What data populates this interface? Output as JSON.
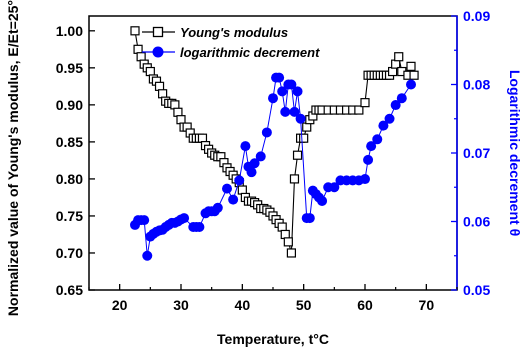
{
  "chart_data": {
    "type": "scatter",
    "xlabel": "Temperature, t°C",
    "ylabel_left": "Normalized value of Young's modulus, E/Et=25°C",
    "ylabel_right": "Logarithmic decrement θ",
    "xlim": [
      15,
      75
    ],
    "xticks": [
      20,
      30,
      40,
      50,
      60,
      70
    ],
    "ylim_left": [
      0.65,
      1.02
    ],
    "yticks_left": [
      0.65,
      0.7,
      0.75,
      0.8,
      0.85,
      0.9,
      0.95,
      1.0
    ],
    "ylim_right": [
      0.05,
      0.09
    ],
    "yticks_right": [
      0.05,
      0.06,
      0.07,
      0.08,
      0.09
    ],
    "legend_position": "top-left",
    "colors": {
      "modulus": "#000000",
      "decrement": "#0000ff",
      "right_axis": "#0000ff"
    },
    "series": [
      {
        "name": "Young's modulus",
        "axis": "left",
        "marker": "open-square",
        "x": [
          22.5,
          23.0,
          23.5,
          24.0,
          24.5,
          25.0,
          25.5,
          26.0,
          26.5,
          27.0,
          27.5,
          28.0,
          28.5,
          29.0,
          29.5,
          30.0,
          30.5,
          31.0,
          31.5,
          32.0,
          32.5,
          33.0,
          33.5,
          34.0,
          34.5,
          35.0,
          35.5,
          36.0,
          36.5,
          37.0,
          37.5,
          38.0,
          38.5,
          39.0,
          39.5,
          40.0,
          40.5,
          41.0,
          41.5,
          42.0,
          42.5,
          43.0,
          43.5,
          44.0,
          44.5,
          45.0,
          45.5,
          46.0,
          46.5,
          47.0,
          47.5,
          48.0,
          48.5,
          49.0,
          49.5,
          50.0,
          50.5,
          51.0,
          51.5,
          52.0,
          52.5,
          53.0,
          54.0,
          55.0,
          56.0,
          57.0,
          58.0,
          59.0,
          60.0,
          60.5,
          61.0,
          61.5,
          62.0,
          62.5,
          63.0,
          63.5,
          64.0,
          64.5,
          65.0,
          65.5,
          66.0,
          67.0,
          67.5,
          68.0
        ],
        "y": [
          1.0,
          0.975,
          0.965,
          0.955,
          0.95,
          0.945,
          0.935,
          0.932,
          0.925,
          0.915,
          0.905,
          0.902,
          0.902,
          0.9,
          0.89,
          0.88,
          0.87,
          0.87,
          0.862,
          0.855,
          0.855,
          0.855,
          0.855,
          0.845,
          0.84,
          0.835,
          0.832,
          0.83,
          0.83,
          0.822,
          0.815,
          0.81,
          0.805,
          0.8,
          0.795,
          0.785,
          0.775,
          0.77,
          0.77,
          0.768,
          0.765,
          0.76,
          0.76,
          0.758,
          0.755,
          0.75,
          0.745,
          0.74,
          0.735,
          0.725,
          0.715,
          0.7,
          0.8,
          0.832,
          0.855,
          0.855,
          0.87,
          0.88,
          0.885,
          0.893,
          0.893,
          0.893,
          0.893,
          0.893,
          0.893,
          0.893,
          0.893,
          0.893,
          0.903,
          0.94,
          0.94,
          0.94,
          0.94,
          0.94,
          0.94,
          0.94,
          0.94,
          0.945,
          0.955,
          0.965,
          0.945,
          0.94,
          0.952,
          0.94
        ]
      },
      {
        "name": "logarithmic decrement",
        "axis": "right",
        "marker": "filled-circle",
        "x": [
          22.5,
          23.0,
          23.5,
          24.0,
          24.5,
          25.0,
          25.5,
          26.0,
          26.5,
          27.0,
          27.5,
          28.0,
          28.5,
          29.0,
          29.5,
          30.0,
          30.5,
          32.0,
          32.5,
          33.0,
          34.0,
          34.5,
          35.0,
          35.5,
          36.0,
          37.5,
          38.5,
          39.5,
          40.5,
          41.0,
          41.5,
          42.0,
          43.0,
          44.0,
          45.0,
          45.5,
          46.0,
          46.5,
          47.0,
          47.5,
          48.0,
          48.5,
          49.0,
          49.5,
          50.5,
          51.0,
          51.5,
          52.0,
          52.5,
          53.0,
          54.0,
          55.0,
          56.0,
          57.0,
          58.0,
          59.0,
          60.0,
          60.5,
          61.0,
          62.0,
          63.0,
          64.0,
          65.0,
          66.0,
          67.5
        ],
        "y": [
          0.0595,
          0.0602,
          0.0602,
          0.0602,
          0.055,
          0.0578,
          0.0582,
          0.0585,
          0.0587,
          0.0588,
          0.0592,
          0.0595,
          0.0598,
          0.0598,
          0.06,
          0.0603,
          0.0605,
          0.0592,
          0.0592,
          0.0592,
          0.0612,
          0.0615,
          0.0615,
          0.0615,
          0.062,
          0.0648,
          0.0632,
          0.066,
          0.071,
          0.068,
          0.0672,
          0.0685,
          0.0695,
          0.073,
          0.078,
          0.081,
          0.081,
          0.079,
          0.076,
          0.08,
          0.08,
          0.076,
          0.079,
          0.075,
          0.0605,
          0.0605,
          0.0645,
          0.064,
          0.0635,
          0.063,
          0.065,
          0.065,
          0.066,
          0.066,
          0.066,
          0.066,
          0.0662,
          0.069,
          0.071,
          0.072,
          0.074,
          0.075,
          0.077,
          0.078,
          0.08
        ]
      }
    ]
  }
}
